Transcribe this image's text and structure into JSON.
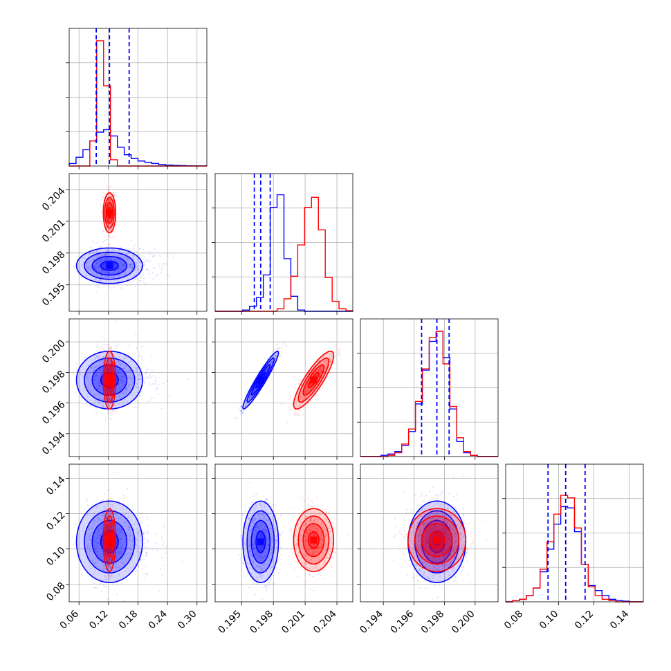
{
  "colors": {
    "series_a": "#0000ff",
    "series_b": "#ff0000",
    "grid": "#b0b0b0"
  },
  "chart_data": {
    "type": "scatter",
    "subtype": "corner-plot",
    "title": "",
    "grid": true,
    "legend": "none",
    "params": [
      {
        "range": [
          0.04,
          0.32
        ],
        "ticks": [
          0.06,
          0.12,
          0.18,
          0.24,
          0.3
        ],
        "tick_labels": [
          "0.06",
          "0.12",
          "0.18",
          "0.24",
          "0.30"
        ],
        "dashed_quantiles": [
          0.095,
          0.122,
          0.162
        ]
      },
      {
        "range": [
          0.1925,
          0.2055
        ],
        "ticks": [
          0.195,
          0.198,
          0.201,
          0.204
        ],
        "tick_labels": [
          "0.195",
          "0.198",
          "0.201",
          "0.204"
        ],
        "dashed_quantiles": [
          0.1962,
          0.1968,
          0.1977
        ]
      },
      {
        "range": [
          0.1925,
          0.2015
        ],
        "ticks": [
          0.194,
          0.196,
          0.198,
          0.2
        ],
        "tick_labels": [
          "0.194",
          "0.196",
          "0.198",
          "0.200"
        ],
        "dashed_quantiles": [
          0.1965,
          0.1975,
          0.1983
        ]
      },
      {
        "range": [
          0.07,
          0.148
        ],
        "ticks": [
          0.08,
          0.1,
          0.12,
          0.14
        ],
        "tick_labels": [
          "0.08",
          "0.10",
          "0.12",
          "0.14"
        ],
        "dashed_quantiles": [
          0.094,
          0.104,
          0.115
        ]
      }
    ],
    "series": [
      {
        "color": "blue",
        "mean": [
          0.122,
          0.1968,
          0.1975,
          0.104
        ],
        "sd": [
          0.032,
          0.0008,
          0.0009,
          0.011
        ],
        "corr": [
          [
            1,
            0,
            0,
            0
          ],
          [
            0,
            1,
            0.95,
            0
          ],
          [
            0,
            0.95,
            1,
            0
          ],
          [
            0,
            0,
            0,
            1
          ]
        ],
        "hist": [
          [
            0.02,
            0.07,
            0.13,
            0.2,
            0.27,
            0.29,
            0.24,
            0.15,
            0.09,
            0.06,
            0.04,
            0.03,
            0.02,
            0.012,
            0.008,
            0.005,
            0.004,
            0.002,
            0.001,
            0.001
          ],
          [
            0,
            0,
            0,
            0,
            0.01,
            0.04,
            0.11,
            0.29,
            0.83,
            0.93,
            0.42,
            0.12,
            0.01,
            0,
            0,
            0,
            0,
            0,
            0,
            0
          ],
          [
            0,
            0,
            0,
            0.01,
            0.02,
            0.04,
            0.09,
            0.2,
            0.42,
            0.69,
            0.92,
            1.0,
            0.79,
            0.38,
            0.12,
            0.03,
            0.01,
            0,
            0,
            0
          ],
          [
            0,
            0.01,
            0.02,
            0.05,
            0.11,
            0.24,
            0.42,
            0.62,
            0.76,
            0.75,
            0.56,
            0.3,
            0.13,
            0.09,
            0.05,
            0.02,
            0.01,
            0.005,
            0,
            0
          ]
        ]
      },
      {
        "color": "red",
        "mean": [
          0.122,
          0.2018,
          0.1975,
          0.105
        ],
        "sd": [
          0.006,
          0.0009,
          0.0009,
          0.0085
        ],
        "corr": [
          [
            1,
            0,
            0,
            0
          ],
          [
            0,
            1,
            0.85,
            0
          ],
          [
            0,
            0.85,
            1,
            0
          ],
          [
            0,
            0,
            0,
            1
          ]
        ],
        "hist": [
          [
            0,
            0,
            0,
            0.2,
            1.0,
            0.64,
            0.05,
            0,
            0,
            0,
            0,
            0,
            0,
            0,
            0,
            0,
            0,
            0,
            0,
            0
          ],
          [
            0,
            0,
            0,
            0,
            0,
            0,
            0,
            0,
            0,
            0.02,
            0.1,
            0.28,
            0.53,
            0.83,
            0.91,
            0.65,
            0.27,
            0.08,
            0.02,
            0.005
          ],
          [
            0,
            0,
            0,
            0,
            0.01,
            0.03,
            0.1,
            0.22,
            0.44,
            0.7,
            0.95,
            1.0,
            0.74,
            0.4,
            0.15,
            0.04,
            0.01,
            0,
            0,
            0
          ],
          [
            0,
            0.01,
            0.02,
            0.05,
            0.11,
            0.26,
            0.48,
            0.7,
            0.85,
            0.83,
            0.59,
            0.3,
            0.12,
            0.05,
            0.02,
            0.01,
            0,
            0,
            0,
            0
          ]
        ]
      }
    ]
  }
}
